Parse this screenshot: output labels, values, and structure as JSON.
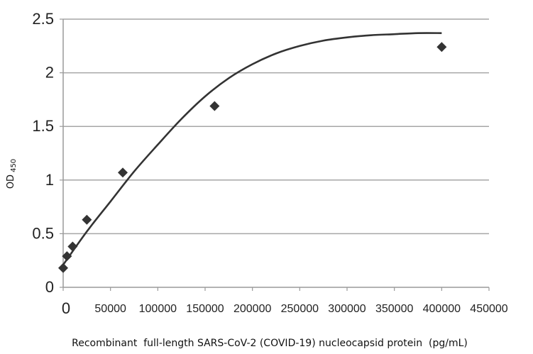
{
  "chart_data": {
    "type": "scatter",
    "title": "",
    "xlabel": "Recombinant  full-length SARS-CoV-2 (COVID-19) nucleocapsid protein  (pg/mL)",
    "ylabel": "OD",
    "ylabel_sub": "450",
    "xlim": [
      0,
      450000
    ],
    "ylim": [
      0,
      2.5
    ],
    "xticks": [
      "0",
      "50000",
      "100000",
      "150000",
      "200000",
      "250000",
      "300000",
      "350000",
      "400000",
      "450000"
    ],
    "yticks": [
      "0",
      "0.5",
      "1",
      "1.5",
      "2",
      "2.5"
    ],
    "grid": "horizontal",
    "legend": "none",
    "series": [
      {
        "marker": "diamond",
        "color": "#333333",
        "points": [
          {
            "x": 0,
            "y": 0.18
          },
          {
            "x": 4000,
            "y": 0.29
          },
          {
            "x": 10000,
            "y": 0.38
          },
          {
            "x": 25000,
            "y": 0.63
          },
          {
            "x": 63000,
            "y": 1.07
          },
          {
            "x": 160000,
            "y": 1.69
          },
          {
            "x": 400000,
            "y": 2.24
          }
        ]
      }
    ],
    "fit_curve": {
      "color": "#333333",
      "points": [
        {
          "x": 0,
          "y": 0.21
        },
        {
          "x": 25000,
          "y": 0.52
        },
        {
          "x": 50000,
          "y": 0.8
        },
        {
          "x": 75000,
          "y": 1.08
        },
        {
          "x": 100000,
          "y": 1.33
        },
        {
          "x": 125000,
          "y": 1.57
        },
        {
          "x": 150000,
          "y": 1.78
        },
        {
          "x": 175000,
          "y": 1.95
        },
        {
          "x": 200000,
          "y": 2.08
        },
        {
          "x": 225000,
          "y": 2.18
        },
        {
          "x": 250000,
          "y": 2.25
        },
        {
          "x": 275000,
          "y": 2.3
        },
        {
          "x": 300000,
          "y": 2.33
        },
        {
          "x": 325000,
          "y": 2.35
        },
        {
          "x": 350000,
          "y": 2.36
        },
        {
          "x": 375000,
          "y": 2.37
        },
        {
          "x": 400000,
          "y": 2.37
        }
      ]
    }
  }
}
